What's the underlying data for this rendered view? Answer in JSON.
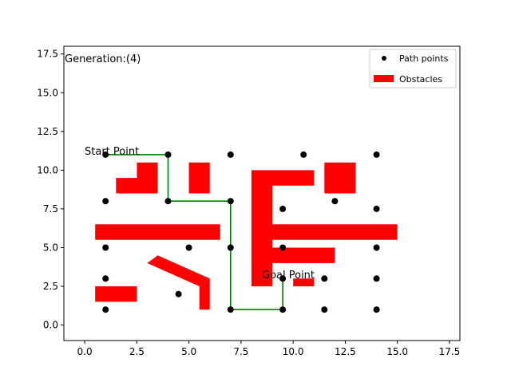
{
  "chart_data": {
    "type": "scatter",
    "title": "",
    "xlabel": "",
    "ylabel": "",
    "xlim": [
      -1,
      18
    ],
    "ylim": [
      -1,
      18
    ],
    "xticks": [
      0.0,
      2.5,
      5.0,
      7.5,
      10.0,
      12.5,
      15.0,
      17.5
    ],
    "yticks": [
      0.0,
      2.5,
      5.0,
      7.5,
      10.0,
      12.5,
      15.0,
      17.5
    ],
    "xtick_labels": [
      "0.0",
      "2.5",
      "5.0",
      "7.5",
      "10.0",
      "12.5",
      "15.0",
      "17.5"
    ],
    "ytick_labels": [
      "0.0",
      "2.5",
      "5.0",
      "7.5",
      "10.0",
      "12.5",
      "15.0",
      "17.5"
    ],
    "grid": false,
    "legend_position": "top-right",
    "annotations": {
      "generation": "Generation:(4)",
      "start": "Start Point",
      "goal": "Goal Point"
    },
    "series": [
      {
        "name": "Path points",
        "color": "#000000",
        "points": [
          [
            1,
            11
          ],
          [
            4,
            11
          ],
          [
            7,
            11
          ],
          [
            10.5,
            11
          ],
          [
            14,
            11
          ],
          [
            1,
            8
          ],
          [
            4,
            8
          ],
          [
            7,
            8
          ],
          [
            9.5,
            7.5
          ],
          [
            12,
            8
          ],
          [
            14,
            7.5
          ],
          [
            1,
            5
          ],
          [
            5,
            5
          ],
          [
            7,
            5
          ],
          [
            9.5,
            5
          ],
          [
            14,
            5
          ],
          [
            1,
            3
          ],
          [
            4.5,
            2
          ],
          [
            9.5,
            3
          ],
          [
            11.5,
            3
          ],
          [
            14,
            3
          ],
          [
            1,
            1
          ],
          [
            7,
            1
          ],
          [
            9.5,
            1
          ],
          [
            11.5,
            1
          ],
          [
            14,
            1
          ]
        ]
      },
      {
        "name": "Obstacles",
        "color": "#ff0000",
        "polygons": [
          [
            [
              1.5,
              8.5
            ],
            [
              3.5,
              8.5
            ],
            [
              3.5,
              10.5
            ],
            [
              2.5,
              10.5
            ],
            [
              2.5,
              9.5
            ],
            [
              1.5,
              9.5
            ]
          ],
          [
            [
              5,
              8.5
            ],
            [
              6,
              8.5
            ],
            [
              6,
              10.5
            ],
            [
              5,
              10.5
            ]
          ],
          [
            [
              8,
              2.5
            ],
            [
              9,
              2.5
            ],
            [
              9,
              4
            ],
            [
              12,
              4
            ],
            [
              12,
              5
            ],
            [
              9,
              5
            ],
            [
              9,
              5.5
            ],
            [
              15,
              5.5
            ],
            [
              15,
              6.5
            ],
            [
              9,
              6.5
            ],
            [
              9,
              9
            ],
            [
              11,
              9
            ],
            [
              11,
              10
            ],
            [
              8,
              10
            ]
          ],
          [
            [
              11.5,
              8.5
            ],
            [
              13,
              8.5
            ],
            [
              13,
              10.5
            ],
            [
              11.5,
              10.5
            ]
          ],
          [
            [
              0.5,
              5.5
            ],
            [
              6.5,
              5.5
            ],
            [
              6.5,
              6.5
            ],
            [
              0.5,
              6.5
            ]
          ],
          [
            [
              3.5,
              4.5
            ],
            [
              6,
              3
            ],
            [
              5.5,
              2.5
            ],
            [
              3,
              4
            ]
          ],
          [
            [
              5.5,
              1
            ],
            [
              6,
              1
            ],
            [
              6,
              3
            ],
            [
              5.5,
              2.5
            ]
          ],
          [
            [
              0.5,
              1.5
            ],
            [
              2.5,
              1.5
            ],
            [
              2.5,
              2.5
            ],
            [
              0.5,
              2.5
            ]
          ],
          [
            [
              10,
              2.5
            ],
            [
              11,
              2.5
            ],
            [
              11,
              3
            ],
            [
              10,
              3
            ]
          ]
        ]
      }
    ],
    "path": {
      "color": "#008000",
      "points": [
        [
          1,
          11
        ],
        [
          4,
          11
        ],
        [
          4,
          8
        ],
        [
          7,
          8
        ],
        [
          7,
          1
        ],
        [
          9.5,
          1
        ],
        [
          9.5,
          3
        ]
      ]
    }
  }
}
